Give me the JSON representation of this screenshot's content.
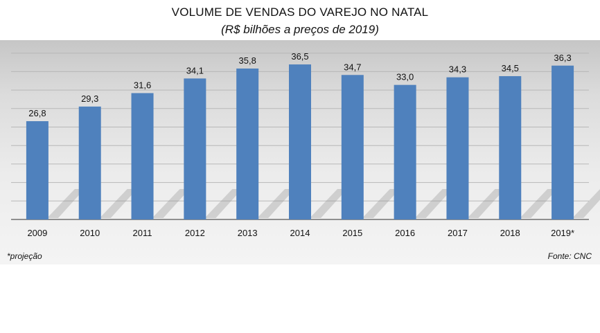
{
  "chart_data": {
    "type": "bar",
    "title": "VOLUME DE VENDAS DO VAREJO NO NATAL",
    "subtitle": "(R$ bilhões a preços de 2019)",
    "categories": [
      "2009",
      "2010",
      "2011",
      "2012",
      "2013",
      "2014",
      "2015",
      "2016",
      "2017",
      "2018",
      "2019*"
    ],
    "values": [
      26.8,
      29.3,
      31.6,
      34.1,
      35.8,
      36.5,
      34.7,
      33.0,
      34.3,
      34.5,
      36.3
    ],
    "value_labels": [
      "26,8",
      "29,3",
      "31,6",
      "34,1",
      "35,8",
      "36,5",
      "34,7",
      "33,0",
      "34,3",
      "34,5",
      "36,3"
    ],
    "xlabel": "",
    "ylabel": "",
    "grid": true,
    "bar_color": "#4f81bd",
    "footnote": "*projeção",
    "source": "Fonte: CNC"
  }
}
